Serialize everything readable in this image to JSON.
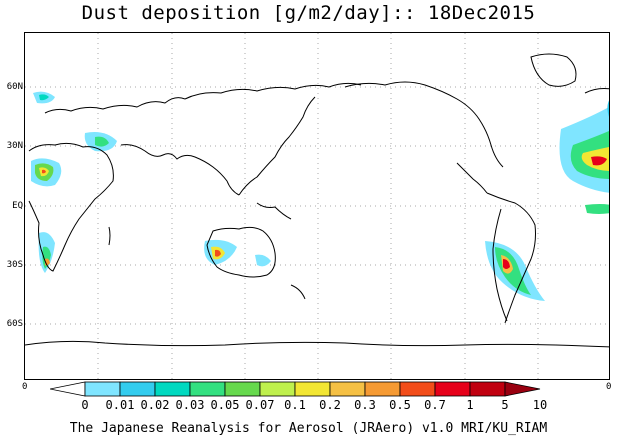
{
  "title": "Dust deposition [g/m2/day]:: 18Dec2015",
  "lat_labels": [
    "60N",
    "30N",
    "EQ",
    "30S",
    "60S"
  ],
  "corner_labels": {
    "left": "0",
    "right": "0"
  },
  "colorbar": {
    "labels": [
      "0",
      "0.01",
      "0.02",
      "0.03",
      "0.05",
      "0.07",
      "0.1",
      "0.2",
      "0.3",
      "0.5",
      "0.7",
      "1",
      "5",
      "10"
    ],
    "colors": [
      "#ffffff",
      "#7fe5ff",
      "#33ccee",
      "#00d9c0",
      "#33e080",
      "#66d94d",
      "#bff04d",
      "#f2e633",
      "#f5c044",
      "#f59a33",
      "#f24d1a",
      "#e6001a",
      "#c00010",
      "#990010"
    ]
  },
  "credit": "The Japanese Reanalysis for Aerosol (JRAero) v1.0 MRI/KU_RIAM"
}
